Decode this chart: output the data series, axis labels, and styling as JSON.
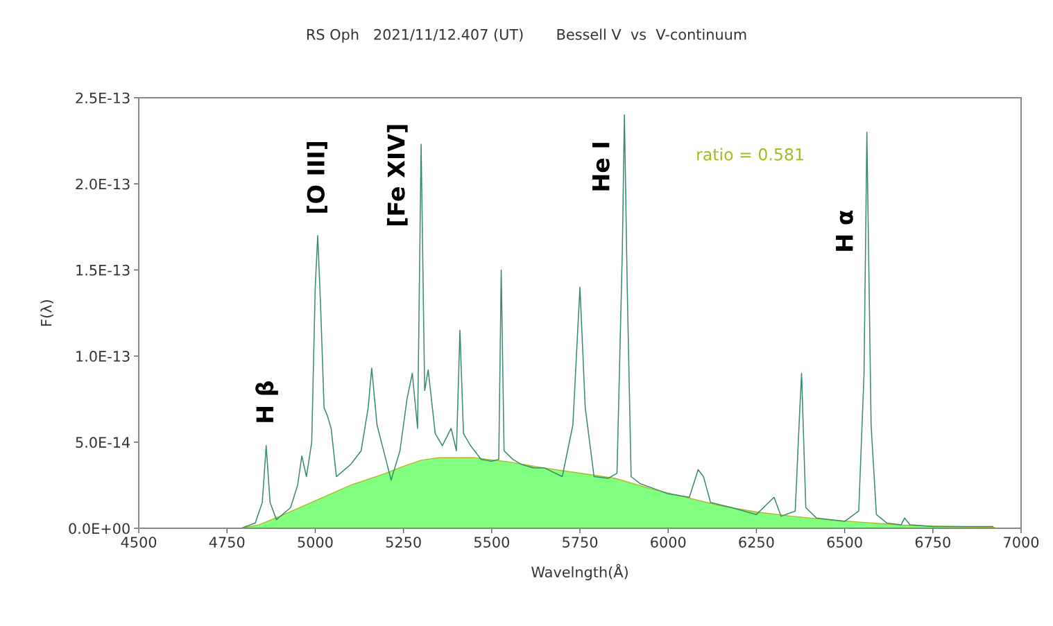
{
  "chart_data": {
    "type": "line",
    "title": "RS Oph   2021/11/12.407 (UT)       Bessell V  vs  V-continuum",
    "xlabel": "Wavelngth(Å)",
    "ylabel": "F(λ)",
    "xlim": [
      4500,
      7000
    ],
    "xticks": [
      4500,
      4750,
      5000,
      5250,
      5500,
      5750,
      6000,
      6250,
      6500,
      6750,
      7000
    ],
    "ylim": [
      0,
      2.5e-13
    ],
    "yticks": [
      {
        "value": 0,
        "label": "0.0E+00"
      },
      {
        "value": 5e-14,
        "label": "5.0E-14"
      },
      {
        "value": 1e-13,
        "label": "1.0E-13"
      },
      {
        "value": 1.5e-13,
        "label": "1.5E-13"
      },
      {
        "value": 2e-13,
        "label": "2.0E-13"
      },
      {
        "value": 2.5e-13,
        "label": "2.5E-13"
      }
    ],
    "grid": false,
    "legend": false,
    "series": [
      {
        "type": "area",
        "color": "#80ff80",
        "x": [
          4790,
          4840,
          4900,
          5000,
          5100,
          5200,
          5250,
          5300,
          5350,
          5450,
          5550,
          5650,
          5750,
          5850,
          5950,
          6050,
          6150,
          6250,
          6350,
          6450,
          6550,
          6650,
          6750,
          6925
        ],
        "values": [
          0,
          2e-15,
          7e-15,
          1.6e-14,
          2.5e-14,
          3.2e-14,
          3.6e-14,
          3.95e-14,
          4.1e-14,
          4.1e-14,
          3.85e-14,
          3.5e-14,
          3.2e-14,
          2.9e-14,
          2.3e-14,
          1.8e-14,
          1.3e-14,
          9.5e-15,
          7e-15,
          5e-15,
          3.5e-15,
          2e-15,
          1.2e-15,
          5e-16
        ]
      },
      {
        "color": "#3a8a6e",
        "x": [
          4790,
          4830,
          4850,
          4861,
          4872,
          4890,
          4930,
          4950,
          4962,
          4975,
          4990,
          5000,
          5007,
          5015,
          5025,
          5035,
          5045,
          5060,
          5100,
          5130,
          5150,
          5160,
          5175,
          5200,
          5215,
          5240,
          5260,
          5275,
          5290,
          5300,
          5310,
          5320,
          5340,
          5360,
          5385,
          5400,
          5410,
          5420,
          5440,
          5470,
          5500,
          5520,
          5527,
          5535,
          5560,
          5585,
          5620,
          5650,
          5700,
          5730,
          5750,
          5765,
          5790,
          5830,
          5855,
          5870,
          5876,
          5884,
          5895,
          5920,
          5960,
          6000,
          6060,
          6085,
          6100,
          6120,
          6180,
          6250,
          6300,
          6320,
          6360,
          6372,
          6378,
          6390,
          6420,
          6500,
          6540,
          6555,
          6563,
          6575,
          6590,
          6620,
          6660,
          6670,
          6685,
          6750,
          6920
        ],
        "values": [
          0,
          3e-15,
          1.5e-14,
          4.8e-14,
          1.5e-14,
          5e-15,
          1.2e-14,
          2.5e-14,
          4.2e-14,
          3e-14,
          5e-14,
          1.4e-13,
          1.7e-13,
          1.3e-13,
          7e-14,
          6.5e-14,
          5.8e-14,
          3e-14,
          3.7e-14,
          4.5e-14,
          7e-14,
          9.3e-14,
          6e-14,
          4e-14,
          2.8e-14,
          4.5e-14,
          7.5e-14,
          9e-14,
          5.8e-14,
          2.23e-13,
          8e-14,
          9.2e-14,
          5.5e-14,
          4.8e-14,
          5.8e-14,
          4.5e-14,
          1.15e-13,
          5.5e-14,
          4.8e-14,
          4e-14,
          3.9e-14,
          4e-14,
          1.5e-13,
          4.5e-14,
          4e-14,
          3.7e-14,
          3.5e-14,
          3.5e-14,
          3e-14,
          6e-14,
          1.4e-13,
          7e-14,
          3e-14,
          2.9e-14,
          3.2e-14,
          1.6e-13,
          2.4e-13,
          1.4e-13,
          3e-14,
          2.6e-14,
          2.3e-14,
          2e-14,
          1.8e-14,
          3.4e-14,
          3e-14,
          1.5e-14,
          1.2e-14,
          8e-15,
          1.8e-14,
          7e-15,
          1e-14,
          6.5e-14,
          9e-14,
          1.2e-14,
          6e-15,
          4e-15,
          1e-14,
          9e-14,
          2.3e-13,
          6e-14,
          8e-15,
          3e-15,
          2e-15,
          6e-15,
          2e-15,
          1e-15,
          1e-15
        ]
      }
    ],
    "annotations": [
      "H β",
      "[O III]",
      "[Fe XIV]",
      "He I",
      "H α",
      "ratio = 0.581"
    ]
  }
}
